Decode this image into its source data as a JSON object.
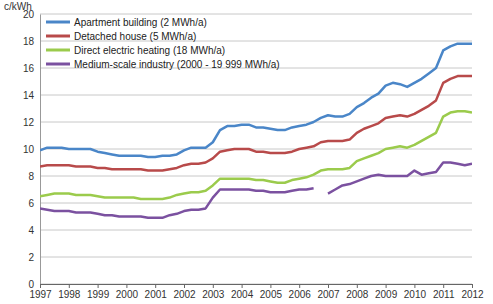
{
  "chart_data": {
    "type": "line",
    "ylabel": "c/kWh",
    "x": [
      1997,
      1997.25,
      1997.5,
      1997.75,
      1998,
      1998.25,
      1998.5,
      1998.75,
      1999,
      1999.25,
      1999.5,
      1999.75,
      2000,
      2000.25,
      2000.5,
      2000.75,
      2001,
      2001.25,
      2001.5,
      2001.75,
      2002,
      2002.25,
      2002.5,
      2002.75,
      2003,
      2003.25,
      2003.5,
      2003.75,
      2004,
      2004.25,
      2004.5,
      2004.75,
      2005,
      2005.25,
      2005.5,
      2005.75,
      2006,
      2006.25,
      2006.5,
      2006.75,
      2007,
      2007.25,
      2007.5,
      2007.75,
      2008,
      2008.25,
      2008.5,
      2008.75,
      2009,
      2009.25,
      2009.5,
      2009.75,
      2010,
      2010.25,
      2010.5,
      2010.75,
      2011,
      2011.25,
      2011.5,
      2011.75,
      2012
    ],
    "series": [
      {
        "name": "Apartment building (2 MWh/a)",
        "color": "#4a86c8",
        "values": [
          9.9,
          10.1,
          10.1,
          10.1,
          10.0,
          10.0,
          10.0,
          10.0,
          9.8,
          9.7,
          9.6,
          9.5,
          9.5,
          9.5,
          9.5,
          9.4,
          9.4,
          9.5,
          9.5,
          9.6,
          9.9,
          10.1,
          10.1,
          10.1,
          10.5,
          11.4,
          11.7,
          11.7,
          11.8,
          11.8,
          11.6,
          11.6,
          11.5,
          11.4,
          11.4,
          11.6,
          11.7,
          11.8,
          12.0,
          12.3,
          12.5,
          12.4,
          12.4,
          12.6,
          13.1,
          13.4,
          13.8,
          14.1,
          14.7,
          14.9,
          14.8,
          14.6,
          14.9,
          15.2,
          15.6,
          16.0,
          17.3,
          17.6,
          17.8,
          17.8,
          17.8
        ]
      },
      {
        "name": "Detached house (5 MWh/a)",
        "color": "#b84a4a",
        "values": [
          8.7,
          8.8,
          8.8,
          8.8,
          8.8,
          8.7,
          8.7,
          8.7,
          8.6,
          8.6,
          8.5,
          8.5,
          8.5,
          8.5,
          8.5,
          8.4,
          8.4,
          8.4,
          8.5,
          8.6,
          8.8,
          8.9,
          8.9,
          9.0,
          9.3,
          9.8,
          9.9,
          10.0,
          10.0,
          10.0,
          9.8,
          9.8,
          9.7,
          9.7,
          9.7,
          9.8,
          10.0,
          10.1,
          10.2,
          10.5,
          10.6,
          10.6,
          10.6,
          10.7,
          11.2,
          11.5,
          11.7,
          11.9,
          12.3,
          12.4,
          12.5,
          12.4,
          12.6,
          12.9,
          13.2,
          13.6,
          14.9,
          15.2,
          15.4,
          15.4,
          15.4
        ]
      },
      {
        "name": "Direct electric heating (18 MWh/a)",
        "color": "#9bcb4c",
        "values": [
          6.5,
          6.6,
          6.7,
          6.7,
          6.7,
          6.6,
          6.6,
          6.6,
          6.5,
          6.4,
          6.4,
          6.4,
          6.4,
          6.4,
          6.3,
          6.3,
          6.3,
          6.3,
          6.4,
          6.6,
          6.7,
          6.8,
          6.8,
          6.9,
          7.3,
          7.8,
          7.8,
          7.8,
          7.8,
          7.8,
          7.7,
          7.7,
          7.6,
          7.5,
          7.5,
          7.7,
          7.8,
          7.9,
          8.1,
          8.4,
          8.5,
          8.5,
          8.5,
          8.6,
          9.1,
          9.3,
          9.5,
          9.7,
          10.0,
          10.1,
          10.2,
          10.1,
          10.3,
          10.6,
          10.9,
          11.2,
          12.4,
          12.7,
          12.8,
          12.8,
          12.7
        ]
      },
      {
        "name": "Medium-scale industry (2000 - 19 999 MWh/a)",
        "color": "#7b51a0",
        "values": [
          5.6,
          5.5,
          5.4,
          5.4,
          5.4,
          5.3,
          5.3,
          5.3,
          5.2,
          5.1,
          5.1,
          5.0,
          5.0,
          5.0,
          5.0,
          4.9,
          4.9,
          4.9,
          5.1,
          5.2,
          5.4,
          5.5,
          5.5,
          5.6,
          6.4,
          7.0,
          7.0,
          7.0,
          7.0,
          7.0,
          6.9,
          6.9,
          6.8,
          6.8,
          6.8,
          6.9,
          7.0,
          7.0,
          7.1,
          null,
          6.7,
          7.0,
          7.3,
          7.4,
          7.6,
          7.8,
          8.0,
          8.1,
          8.0,
          8.0,
          8.0,
          8.0,
          8.4,
          8.1,
          8.2,
          8.3,
          9.0,
          9.0,
          8.9,
          8.8,
          8.9
        ]
      }
    ],
    "xlim": [
      1997,
      2012
    ],
    "xticks": [
      1997,
      1998,
      1999,
      2000,
      2001,
      2002,
      2003,
      2004,
      2005,
      2006,
      2007,
      2008,
      2009,
      2010,
      2011,
      2012
    ],
    "ylim": [
      0,
      20
    ],
    "yticks": [
      0,
      2,
      4,
      6,
      8,
      10,
      12,
      14,
      16,
      18,
      20
    ],
    "grid": true,
    "legend": "upper left"
  }
}
